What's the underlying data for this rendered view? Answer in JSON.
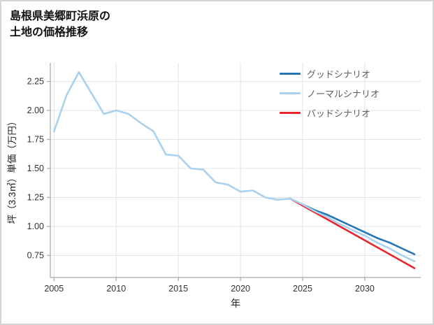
{
  "title": {
    "line1": "島根県美郷町浜原の",
    "line2": "土地の価格推移"
  },
  "chart_data": {
    "type": "line",
    "title": "島根県美郷町浜原の土地の価格推移",
    "xlabel": "年",
    "ylabel": "坪（3.3㎡）単価（万円）",
    "xlim": [
      2004.7,
      2034.5
    ],
    "ylim": [
      0.56,
      2.41
    ],
    "x_ticks": [
      2005,
      2010,
      2015,
      2020,
      2025,
      2030
    ],
    "y_ticks": [
      0.75,
      1.0,
      1.25,
      1.5,
      1.75,
      2.0,
      2.25
    ],
    "grid": true,
    "legend_position": "top-right",
    "legend": [
      {
        "label": "グッドシナリオ",
        "color": "#2474b6"
      },
      {
        "label": "ノーマルシナリオ",
        "color": "#a9d2f0"
      },
      {
        "label": "バッドシナリオ",
        "color": "#e8262b"
      }
    ],
    "series": [
      {
        "name": "グッドシナリオ",
        "color": "#2474b6",
        "x": [
          2024,
          2025,
          2026,
          2027,
          2028,
          2029,
          2030,
          2031,
          2032,
          2033,
          2034
        ],
        "values": [
          1.24,
          1.19,
          1.14,
          1.1,
          1.05,
          1.0,
          0.95,
          0.9,
          0.86,
          0.81,
          0.76
        ]
      },
      {
        "name": "バッドシナリオ",
        "color": "#e8262b",
        "x": [
          2024,
          2025,
          2026,
          2027,
          2028,
          2029,
          2030,
          2031,
          2032,
          2033,
          2034
        ],
        "values": [
          1.24,
          1.18,
          1.12,
          1.06,
          1.0,
          0.94,
          0.88,
          0.82,
          0.76,
          0.7,
          0.64
        ]
      },
      {
        "name": "ノーマルシナリオ",
        "color": "#a9d2f0",
        "x": [
          2005,
          2006,
          2007,
          2008,
          2009,
          2010,
          2011,
          2012,
          2013,
          2014,
          2015,
          2016,
          2017,
          2018,
          2019,
          2020,
          2021,
          2022,
          2023,
          2024,
          2025,
          2026,
          2027,
          2028,
          2029,
          2030,
          2031,
          2032,
          2033,
          2034
        ],
        "values": [
          1.82,
          2.13,
          2.33,
          2.15,
          1.97,
          2.0,
          1.97,
          1.89,
          1.82,
          1.62,
          1.61,
          1.5,
          1.49,
          1.38,
          1.36,
          1.3,
          1.31,
          1.25,
          1.23,
          1.24,
          1.19,
          1.13,
          1.08,
          1.02,
          0.97,
          0.92,
          0.86,
          0.81,
          0.75,
          0.7
        ]
      }
    ]
  }
}
